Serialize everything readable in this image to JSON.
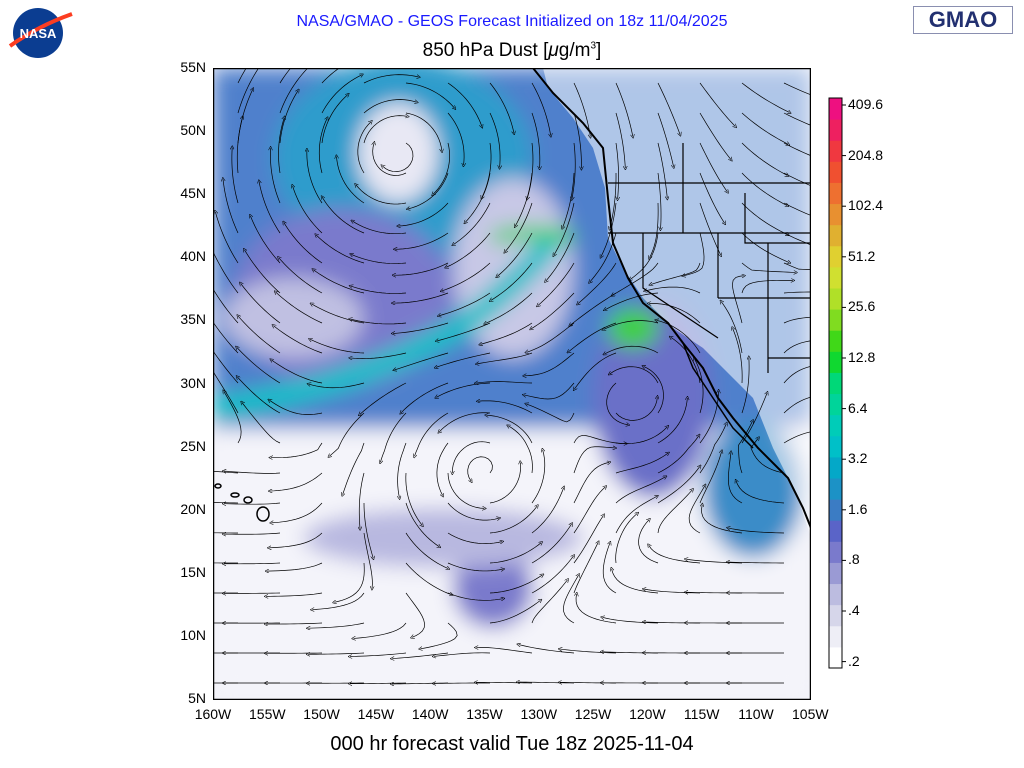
{
  "header": {
    "init_title": "NASA/GMAO - GEOS Forecast Initialized on 18z 11/04/2025",
    "variable_title_prefix": "850 hPa Dust [",
    "variable_title_mu": "μ",
    "variable_title_unit": "g/m",
    "variable_title_sup": "3",
    "variable_title_suffix": "]",
    "gmao_logo": "GMAO",
    "nasa_logo": "NASA"
  },
  "footer": {
    "valid_title": "000 hr forecast valid Tue 18z 2025-11-04"
  },
  "map": {
    "lat_labels": [
      "55N",
      "50N",
      "45N",
      "40N",
      "35N",
      "30N",
      "25N",
      "20N",
      "15N",
      "10N",
      "5N"
    ],
    "lon_labels": [
      "160W",
      "155W",
      "150W",
      "145W",
      "140W",
      "135W",
      "130W",
      "125W",
      "120W",
      "115W",
      "110W",
      "105W"
    ],
    "lat_range": [
      5,
      55
    ],
    "lon_range": [
      -160,
      -105
    ],
    "overlay": "850 hPa wind streamlines"
  },
  "colorbar": {
    "labels": [
      "409.6",
      "204.8",
      "102.4",
      "51.2",
      "25.6",
      "12.8",
      "6.4",
      "3.2",
      "1.6",
      ".8",
      ".4",
      ".2"
    ],
    "colors": [
      "#ffffff",
      "#eeeef6",
      "#d6d6ea",
      "#bcbce0",
      "#9a9ad4",
      "#7a7acc",
      "#5a64c8",
      "#3b7cc4",
      "#1c92c6",
      "#04a8c8",
      "#00c0c8",
      "#00ccb8",
      "#00d49a",
      "#00d878",
      "#10d830",
      "#40d818",
      "#80dc20",
      "#b0e028",
      "#d0e030",
      "#e0d030",
      "#e0b030",
      "#e89030",
      "#ee7030",
      "#f05030",
      "#f03840",
      "#ee2060",
      "#ee1080"
    ]
  }
}
